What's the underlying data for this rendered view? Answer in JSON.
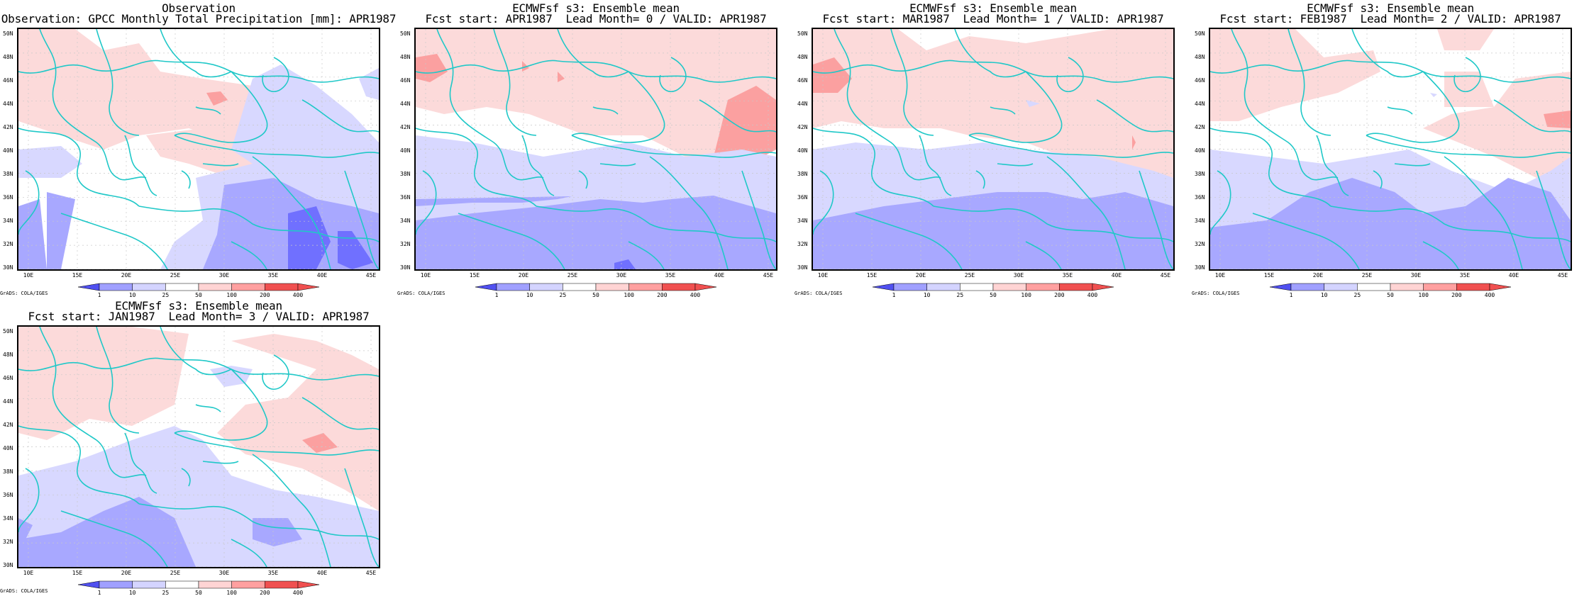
{
  "panels": [
    {
      "title1": "Observation",
      "title2": "Observation: GPCC Monthly Total Precipitation [mm]: APR1987"
    },
    {
      "title1": "ECMWFsf s3: Ensemble mean",
      "title2": "Fcst start: APR1987  Lead Month= 0 / VALID: APR1987"
    },
    {
      "title1": "ECMWFsf s3: Ensemble mean",
      "title2": "Fcst start: MAR1987  Lead Month= 1 / VALID: APR1987"
    },
    {
      "title1": "ECMWFsf s3: Ensemble mean",
      "title2": "Fcst start: FEB1987  Lead Month= 2 / VALID: APR1987"
    },
    {
      "title1": "ECMWFsf s3: Ensemble mean",
      "title2": "Fcst start: JAN1987  Lead Month= 3 / VALID: APR1987"
    }
  ],
  "lat_labels": [
    "50N",
    "48N",
    "46N",
    "44N",
    "42N",
    "40N",
    "38N",
    "36N",
    "34N",
    "32N",
    "30N"
  ],
  "lon_labels": [
    "10E",
    "15E",
    "20E",
    "25E",
    "30E",
    "35E",
    "40E",
    "45E"
  ],
  "colorbar": {
    "ticks": [
      "1",
      "10",
      "25",
      "50",
      "100",
      "200",
      "400"
    ],
    "colors": [
      "#5050f0",
      "#a0a0ff",
      "#d4d4ff",
      "#ffffff",
      "#ffd4d4",
      "#ffa0a0",
      "#f05050"
    ]
  },
  "credit": "GrADS: COLA/IGES",
  "colors": {
    "coast": "#20c8c8",
    "blue_dark": "#7070ff",
    "blue_mid": "#a8a8ff",
    "blue_light": "#d8d8ff",
    "red_light": "#fcdada",
    "red_mid": "#fba0a0"
  }
}
